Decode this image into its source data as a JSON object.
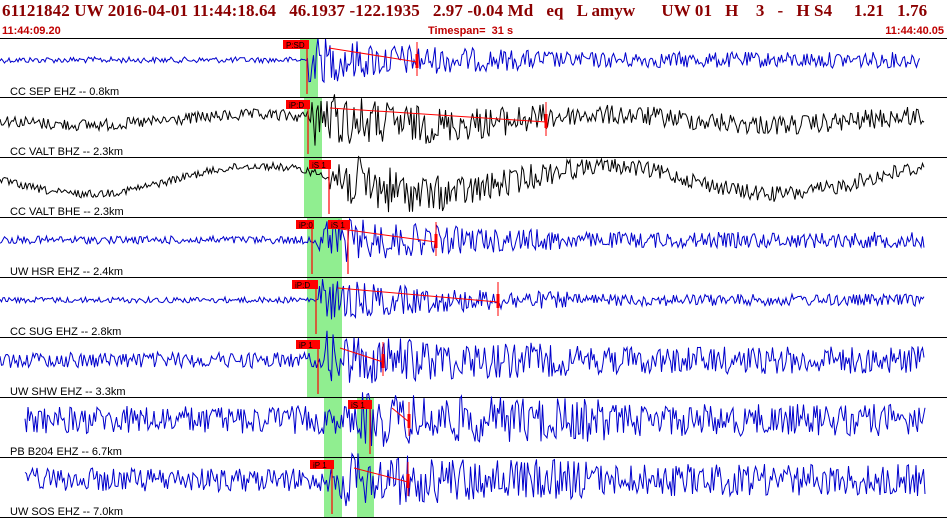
{
  "header": {
    "title": "61121842 UW 2016-04-01 11:44:18.64   46.1937 -122.1935   2.97 -0.04 Md   eq   L amyw      UW 01   H    3   -   H S4     1.21   1.76",
    "start_time": "11:44:09.20",
    "timespan": "Timespan=  31 s",
    "end_time": "11:44:40.05"
  },
  "colors": {
    "title": "#8b0000",
    "blue_trace": "#0000cc",
    "black_trace": "#000000",
    "pick": "#ff0000",
    "window": "#90ee90"
  },
  "traces": [
    {
      "label": "CC SEP EHZ -- 0.8km",
      "color": "blue",
      "picks": [
        "P:SD"
      ]
    },
    {
      "label": "CC VALT BHZ -- 2.3km",
      "color": "black",
      "picks": [
        "iP:D"
      ]
    },
    {
      "label": "CC VALT BHE -- 2.3km",
      "color": "black",
      "picks": [
        "iS 1"
      ]
    },
    {
      "label": "UW HSR EHZ -- 2.4km",
      "color": "blue",
      "picks": [
        "iP:0",
        "iS 1"
      ]
    },
    {
      "label": "CC SUG EHZ -- 2.8km",
      "color": "blue",
      "picks": [
        "iP:D"
      ]
    },
    {
      "label": "UW SHW EHZ -- 3.3km",
      "color": "blue",
      "picks": [
        "iP 1"
      ]
    },
    {
      "label": "PB B204 EHZ -- 6.7km",
      "color": "blue",
      "picks": [
        "iS 1"
      ]
    },
    {
      "label": "UW SOS EHZ -- 7.0km",
      "color": "blue",
      "picks": [
        "iP 1"
      ]
    }
  ]
}
